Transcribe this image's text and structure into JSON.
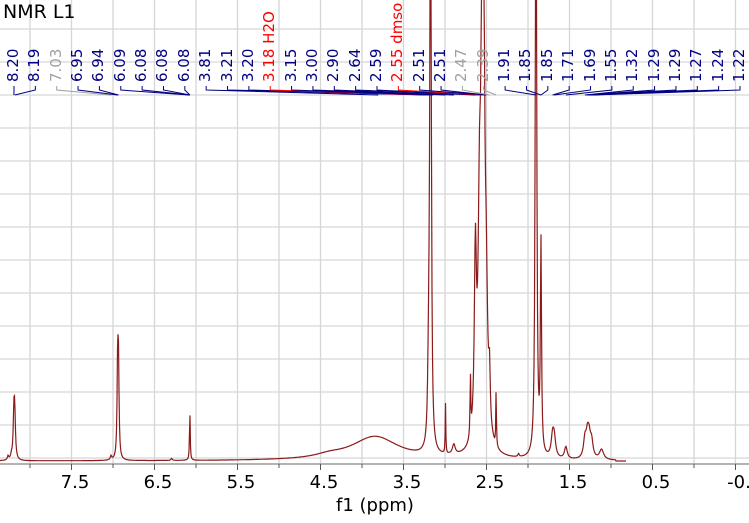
{
  "title": "NMR L1",
  "chart_data": {
    "type": "line",
    "title": "NMR L1",
    "xlabel": "f1 (ppm)",
    "ylabel": "",
    "x_reversed": true,
    "xlim": [
      8.4,
      -0.5
    ],
    "x_ticks": [
      "7.5",
      "6.5",
      "5.5",
      "4.5",
      "3.5",
      "2.5",
      "1.5",
      "0.5",
      "-0."
    ],
    "grid": true,
    "line_color": "#8b1a1a",
    "peak_label_color": "#000080",
    "solvent_label_color": "#ff0000",
    "excluded_label_color": "#a0a0a0",
    "peak_labels": [
      {
        "text": "8.20",
        "kind": "peak"
      },
      {
        "text": "8.19",
        "kind": "peak"
      },
      {
        "text": "7.03",
        "kind": "excluded"
      },
      {
        "text": "6.95",
        "kind": "peak"
      },
      {
        "text": "6.94",
        "kind": "peak"
      },
      {
        "text": "6.09",
        "kind": "peak"
      },
      {
        "text": "6.08",
        "kind": "peak"
      },
      {
        "text": "6.08",
        "kind": "peak"
      },
      {
        "text": "6.08",
        "kind": "peak"
      },
      {
        "text": "3.81",
        "kind": "peak"
      },
      {
        "text": "3.21",
        "kind": "peak"
      },
      {
        "text": "3.20",
        "kind": "peak"
      },
      {
        "text": "3.18 H2O",
        "kind": "solvent"
      },
      {
        "text": "3.15",
        "kind": "peak"
      },
      {
        "text": "3.00",
        "kind": "peak"
      },
      {
        "text": "2.90",
        "kind": "peak"
      },
      {
        "text": "2.64",
        "kind": "peak"
      },
      {
        "text": "2.59",
        "kind": "peak"
      },
      {
        "text": "2.55 dmso",
        "kind": "solvent"
      },
      {
        "text": "2.51",
        "kind": "peak"
      },
      {
        "text": "2.51",
        "kind": "peak"
      },
      {
        "text": "2.47",
        "kind": "excluded"
      },
      {
        "text": "2.39",
        "kind": "excluded"
      },
      {
        "text": "1.91",
        "kind": "peak"
      },
      {
        "text": "1.85",
        "kind": "peak"
      },
      {
        "text": "1.85",
        "kind": "peak"
      },
      {
        "text": "1.71",
        "kind": "peak"
      },
      {
        "text": "1.69",
        "kind": "peak"
      },
      {
        "text": "1.55",
        "kind": "peak"
      },
      {
        "text": "1.32",
        "kind": "peak"
      },
      {
        "text": "1.29",
        "kind": "peak"
      },
      {
        "text": "1.29",
        "kind": "peak"
      },
      {
        "text": "1.27",
        "kind": "peak"
      },
      {
        "text": "1.24",
        "kind": "peak"
      },
      {
        "text": "1.22",
        "kind": "peak"
      }
    ],
    "peaks": [
      {
        "ppm": 8.2,
        "rel_height": 0.2
      },
      {
        "ppm": 6.95,
        "rel_height": 0.28
      },
      {
        "ppm": 6.08,
        "rel_height": 0.16
      },
      {
        "ppm": 3.85,
        "rel_height": 0.12,
        "broad": true
      },
      {
        "ppm": 3.18,
        "rel_height": 1.0,
        "off_scale": true
      },
      {
        "ppm": 3.0,
        "rel_height": 0.14
      },
      {
        "ppm": 2.55,
        "rel_height": 1.0,
        "off_scale": true
      },
      {
        "ppm": 2.64,
        "rel_height": 0.55
      },
      {
        "ppm": 1.91,
        "rel_height": 1.0,
        "off_scale": true
      },
      {
        "ppm": 1.85,
        "rel_height": 0.63
      },
      {
        "ppm": 1.7,
        "rel_height": 0.06
      },
      {
        "ppm": 1.55,
        "rel_height": 0.04
      },
      {
        "ppm": 1.29,
        "rel_height": 0.06
      },
      {
        "ppm": 1.12,
        "rel_height": 0.03
      }
    ]
  }
}
